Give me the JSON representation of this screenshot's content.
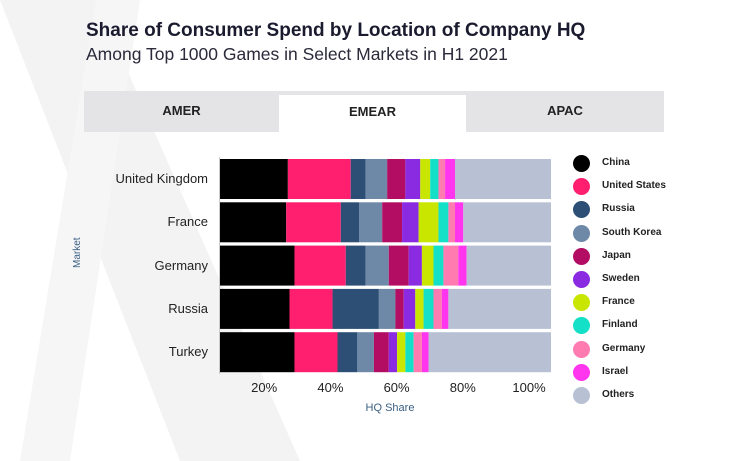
{
  "header": {
    "title": "Share of Consumer Spend by Location of Company HQ",
    "subtitle": "Among Top 1000 Games in Select Markets in H1 2021"
  },
  "tabs": [
    {
      "label": "AMER",
      "active": false
    },
    {
      "label": "EMEAR",
      "active": true
    },
    {
      "label": "APAC",
      "active": false
    }
  ],
  "chart_data": {
    "type": "bar",
    "orientation": "horizontal",
    "stacked": true,
    "categories": [
      "United Kingdom",
      "France",
      "Germany",
      "Russia",
      "Turkey"
    ],
    "xlabel": "HQ Share",
    "ylabel": "Market",
    "xlim": [
      0,
      100
    ],
    "xticks": [
      "20%",
      "40%",
      "60%",
      "80%",
      "100%"
    ],
    "grid": false,
    "legend_position": "right",
    "series": [
      {
        "name": "China",
        "color": "#000000",
        "values": [
          20.5,
          20.0,
          22.5,
          21.0,
          22.5
        ]
      },
      {
        "name": "United States",
        "color": "#ff1f6e",
        "values": [
          19.0,
          16.5,
          15.5,
          13.0,
          13.0
        ]
      },
      {
        "name": "Russia",
        "color": "#2d4f75",
        "values": [
          4.5,
          5.5,
          6.0,
          14.0,
          6.0
        ]
      },
      {
        "name": "South Korea",
        "color": "#6e88a7",
        "values": [
          6.5,
          7.0,
          7.0,
          5.0,
          5.0
        ]
      },
      {
        "name": "Japan",
        "color": "#b30d63",
        "values": [
          5.5,
          6.0,
          6.0,
          2.5,
          4.5
        ]
      },
      {
        "name": "Sweden",
        "color": "#8a2be2",
        "values": [
          4.5,
          5.0,
          4.0,
          3.5,
          2.5
        ]
      },
      {
        "name": "France",
        "color": "#c8e600",
        "values": [
          3.0,
          6.0,
          3.5,
          2.5,
          2.5
        ]
      },
      {
        "name": "Finland",
        "color": "#14e0c8",
        "values": [
          2.5,
          3.0,
          3.0,
          3.0,
          2.5
        ]
      },
      {
        "name": "Germany",
        "color": "#ff7bb0",
        "values": [
          2.0,
          2.0,
          4.5,
          2.5,
          2.5
        ]
      },
      {
        "name": "Israel",
        "color": "#ff36ee",
        "values": [
          3.0,
          2.5,
          2.5,
          2.0,
          2.0
        ]
      },
      {
        "name": "Others",
        "color": "#b8c1d4",
        "values": [
          29.0,
          26.5,
          25.5,
          31.0,
          37.0
        ]
      }
    ]
  }
}
